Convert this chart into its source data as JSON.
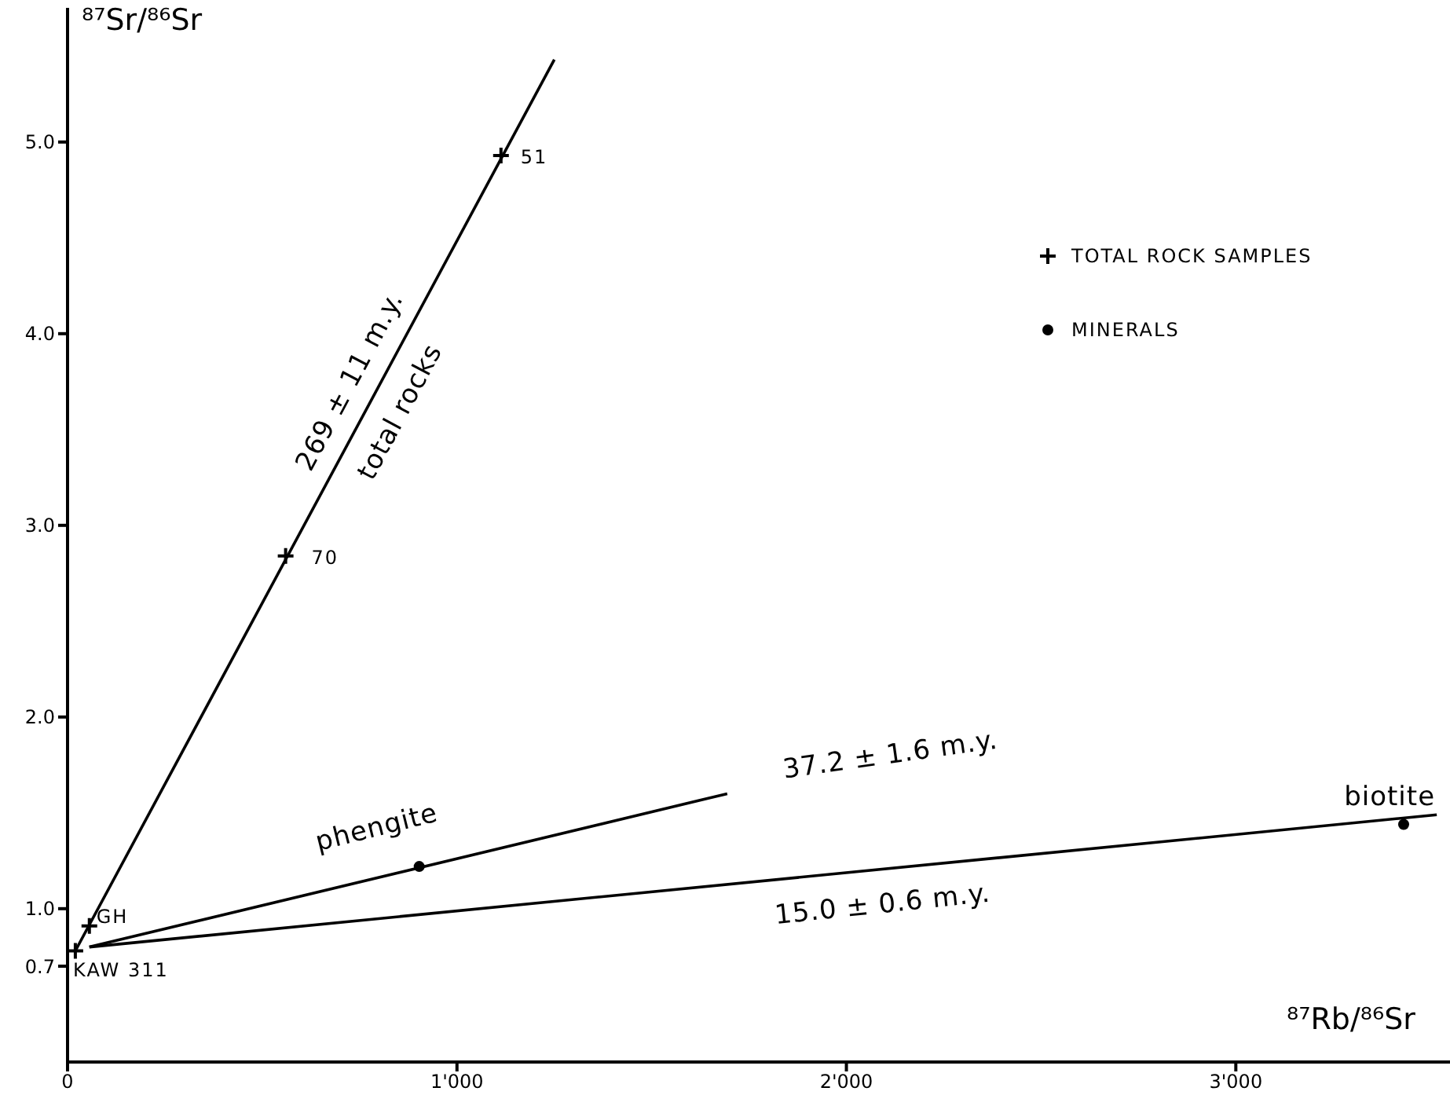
{
  "chart_data": {
    "type": "scatter",
    "xlabel": "⁸⁷Rb/⁸⁶Sr",
    "ylabel": "⁸⁷Sr/⁸⁶Sr",
    "xlim": [
      0,
      3550
    ],
    "ylim": [
      0.2,
      5.7
    ],
    "xticks": [
      {
        "value": 0,
        "label": "0"
      },
      {
        "value": 1000,
        "label": "1'000"
      },
      {
        "value": 2000,
        "label": "2'000"
      },
      {
        "value": 3000,
        "label": "3'000"
      }
    ],
    "yticks": [
      {
        "value": 0.7,
        "label": "0.7"
      },
      {
        "value": 1,
        "label": "1.0"
      },
      {
        "value": 2,
        "label": "2.0"
      },
      {
        "value": 3,
        "label": "3.0"
      },
      {
        "value": 4,
        "label": "4.0"
      },
      {
        "value": 5,
        "label": "5.0"
      }
    ],
    "series": [
      {
        "type": "line",
        "color": "#000000",
        "x": [
          20,
          1250
        ],
        "values": [
          0.78,
          5.43
        ]
      },
      {
        "type": "line",
        "color": "#000000",
        "x": [
          56,
          1694
        ],
        "values": [
          0.8,
          1.6
        ]
      },
      {
        "type": "line",
        "color": "#000000",
        "x": [
          56,
          3516
        ],
        "values": [
          0.8,
          1.49
        ]
      },
      {
        "name": "TOTAL ROCK SAMPLES",
        "color": "#000000",
        "marker": "cross",
        "x": [
          20,
          56,
          560,
          1113
        ],
        "values": [
          0.78,
          0.91,
          2.84,
          4.93
        ]
      },
      {
        "name": "MINERALS",
        "color": "#000000",
        "marker": "circle",
        "x": [
          903,
          3431
        ],
        "values": [
          1.22,
          1.44
        ]
      }
    ],
    "legend": "top right",
    "annotations": [
      "KAW 311",
      "GH",
      "70",
      "51",
      "269 ± 11 m.y.",
      "total rocks",
      "phengite",
      "37.2 ± 1.6 m.y.",
      "biotite",
      "15.0 ± 0.6 m.y."
    ]
  }
}
